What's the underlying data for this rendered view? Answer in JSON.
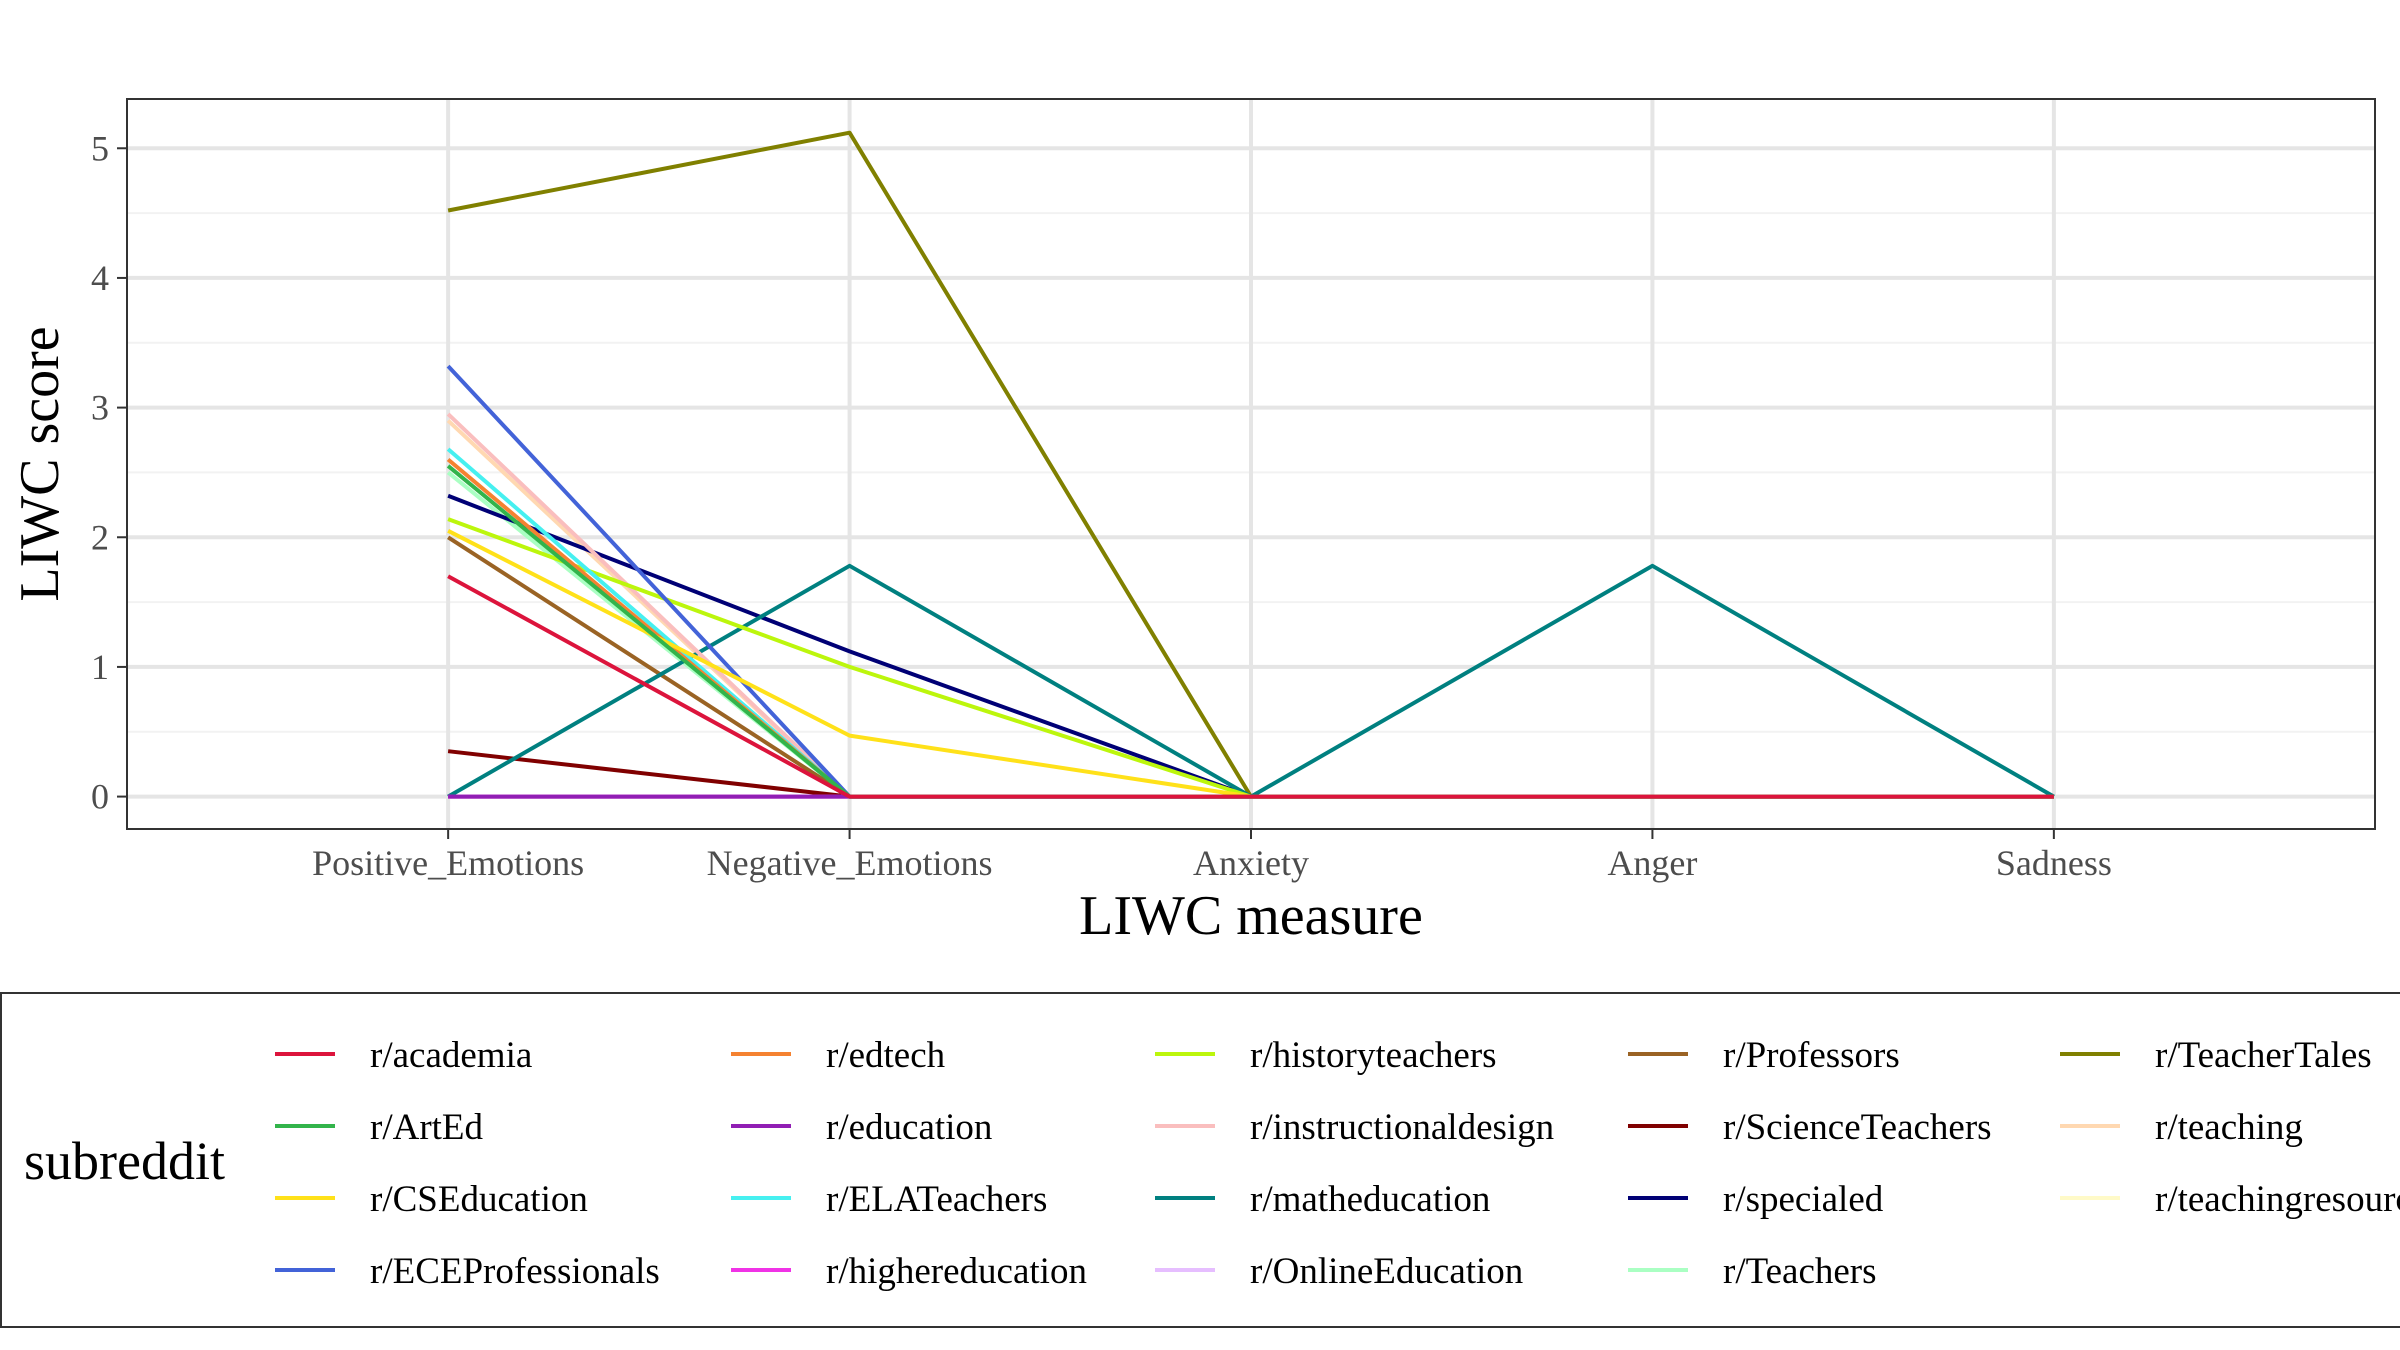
{
  "chart_data": {
    "type": "line",
    "xlabel": "LIWC measure",
    "ylabel": "LIWC score",
    "categories": [
      "Positive_Emotions",
      "Negative_Emotions",
      "Anxiety",
      "Anger",
      "Sadness"
    ],
    "y_ticks": [
      0,
      1,
      2,
      3,
      4,
      5
    ],
    "ylim": [
      -0.25,
      5.38
    ],
    "grid": true,
    "legend": {
      "title": "subreddit",
      "position": "bottom",
      "columns": 5
    },
    "series": [
      {
        "name": "r/academia",
        "color": "#dc143c",
        "values": [
          1.7,
          0,
          0,
          0,
          0
        ]
      },
      {
        "name": "r/ArtEd",
        "color": "#32b44b",
        "values": [
          2.55,
          0,
          0,
          0,
          0
        ]
      },
      {
        "name": "r/CSEducation",
        "color": "#ffe119",
        "values": [
          2.05,
          0.47,
          0,
          0,
          0
        ]
      },
      {
        "name": "r/ECEProfessionals",
        "color": "#4363d8",
        "values": [
          3.32,
          0,
          0,
          0,
          0
        ]
      },
      {
        "name": "r/edtech",
        "color": "#f58231",
        "values": [
          2.6,
          0,
          0,
          0,
          0
        ]
      },
      {
        "name": "r/education",
        "color": "#911eb4",
        "values": [
          0,
          0,
          0,
          0,
          0
        ]
      },
      {
        "name": "r/ELATeachers",
        "color": "#46f0f0",
        "values": [
          2.68,
          0,
          0,
          0,
          0
        ]
      },
      {
        "name": "r/highereducation",
        "color": "#f032e6",
        "values": [
          0,
          0,
          0,
          0,
          0
        ]
      },
      {
        "name": "r/historyteachers",
        "color": "#bcf60c",
        "values": [
          2.14,
          1.0,
          0,
          0,
          0
        ]
      },
      {
        "name": "r/instructionaldesign",
        "color": "#fabebe",
        "values": [
          2.95,
          0,
          0,
          0,
          0
        ]
      },
      {
        "name": "r/matheducation",
        "color": "#008080",
        "values": [
          0,
          1.78,
          0,
          1.78,
          0
        ]
      },
      {
        "name": "r/OnlineEducation",
        "color": "#e6beff",
        "values": [
          0,
          0,
          0,
          0,
          0
        ]
      },
      {
        "name": "r/Professors",
        "color": "#9a6324",
        "values": [
          2.0,
          0,
          0,
          0,
          0
        ]
      },
      {
        "name": "r/ScienceTeachers",
        "color": "#800000",
        "values": [
          0.35,
          0,
          0,
          0,
          0
        ]
      },
      {
        "name": "r/specialed",
        "color": "#000075",
        "values": [
          2.32,
          1.12,
          0,
          0,
          0
        ]
      },
      {
        "name": "r/Teachers",
        "color": "#aaffc3",
        "values": [
          2.5,
          0,
          0,
          0,
          0
        ]
      },
      {
        "name": "r/TeacherTales",
        "color": "#808000",
        "values": [
          4.52,
          5.12,
          0,
          0,
          0
        ]
      },
      {
        "name": "r/teaching",
        "color": "#ffd8b1",
        "values": [
          2.9,
          0,
          0,
          0,
          0
        ]
      },
      {
        "name": "r/teachingresources",
        "color": "#fffac8",
        "values": [
          0,
          0,
          0,
          0,
          0
        ]
      }
    ]
  }
}
